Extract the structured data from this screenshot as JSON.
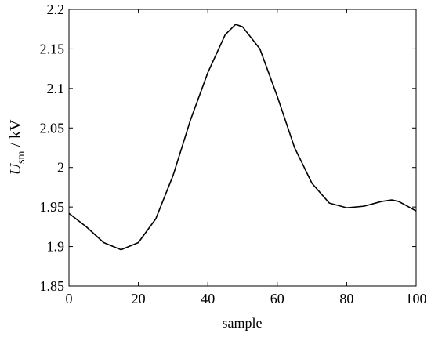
{
  "chart_data": {
    "type": "line",
    "xlabel": "sample",
    "ylabel": {
      "symbol": "U",
      "subscript": "sm",
      "unit": "/ kV"
    },
    "x": [
      0,
      5,
      10,
      15,
      20,
      25,
      30,
      35,
      40,
      45,
      48,
      50,
      55,
      60,
      65,
      70,
      75,
      80,
      85,
      90,
      93,
      95,
      100
    ],
    "series": [
      {
        "color": "#000000",
        "values": [
          1.942,
          1.925,
          1.905,
          1.896,
          1.905,
          1.935,
          1.99,
          2.06,
          2.12,
          2.168,
          2.181,
          2.178,
          2.15,
          2.09,
          2.025,
          1.98,
          1.955,
          1.949,
          1.951,
          1.957,
          1.959,
          1.957,
          1.945
        ]
      }
    ],
    "xlim": [
      0,
      100
    ],
    "xticks": [
      0,
      20,
      40,
      60,
      80,
      100
    ],
    "ylim": [
      1.85,
      2.2
    ],
    "yticks": [
      1.85,
      1.9,
      1.95,
      2,
      2.05,
      2.1,
      2.15,
      2.2
    ]
  }
}
